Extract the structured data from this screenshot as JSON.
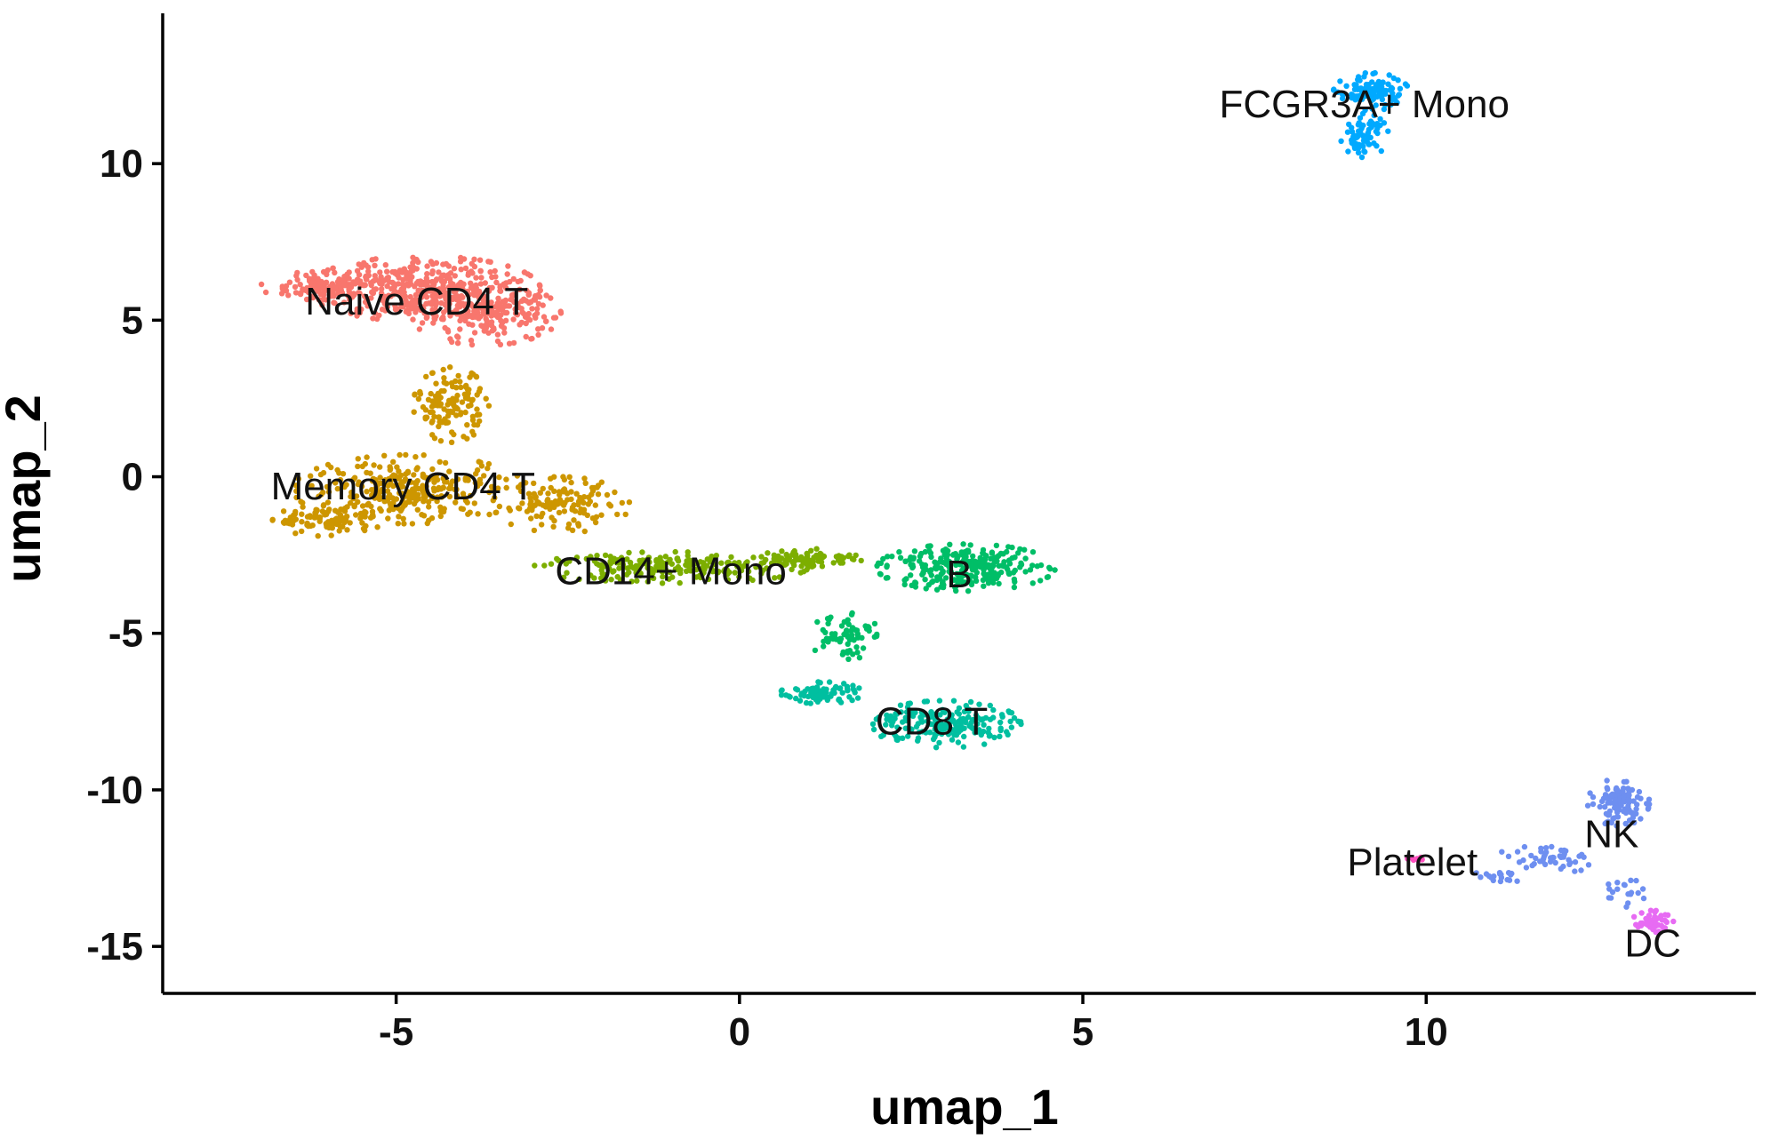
{
  "chart_data": {
    "type": "scatter",
    "title": "",
    "xlabel": "umap_1",
    "ylabel": "umap_2",
    "xlim": [
      -8.4,
      14.8
    ],
    "ylim": [
      -16.5,
      14.8
    ],
    "xticks": [
      -5,
      0,
      5,
      10
    ],
    "yticks": [
      10,
      5,
      0,
      -5,
      -10,
      -15
    ],
    "xtick_labels": [
      "-5",
      "0",
      "5",
      "10"
    ],
    "ytick_labels": [
      "10",
      "5",
      "0",
      "-5",
      "-10",
      "-15"
    ],
    "grid": false,
    "legend": "none",
    "series": [
      {
        "name": "Naive CD4 T",
        "color": "#F8766D",
        "label_at": [
          -4.7,
          5.6
        ],
        "n_points": 700,
        "regions": [
          {
            "cx": -4.6,
            "cy": 6.0,
            "rx": 1.7,
            "ry": 1.05,
            "w": 0.55
          },
          {
            "cx": -6.1,
            "cy": 6.1,
            "rx": 0.9,
            "ry": 0.45,
            "w": 0.15
          },
          {
            "cx": -3.7,
            "cy": 5.2,
            "rx": 1.1,
            "ry": 1.0,
            "w": 0.3
          }
        ]
      },
      {
        "name": "Memory CD4 T",
        "color": "#CD9600",
        "label_at": [
          -4.9,
          -0.3
        ],
        "n_points": 650,
        "regions": [
          {
            "cx": -4.8,
            "cy": -0.4,
            "rx": 1.7,
            "ry": 1.1,
            "w": 0.45
          },
          {
            "cx": -6.0,
            "cy": -1.4,
            "rx": 0.8,
            "ry": 0.5,
            "w": 0.15
          },
          {
            "cx": -4.2,
            "cy": 2.3,
            "rx": 0.55,
            "ry": 1.2,
            "w": 0.2
          },
          {
            "cx": -2.6,
            "cy": -0.9,
            "rx": 1.0,
            "ry": 0.9,
            "w": 0.2
          }
        ]
      },
      {
        "name": "CD14+ Mono",
        "color": "#7CAE00",
        "label_at": [
          -1.0,
          -3.0
        ],
        "n_points": 300,
        "regions": [
          {
            "cx": -1.0,
            "cy": -2.9,
            "rx": 2.0,
            "ry": 0.5,
            "w": 0.7
          },
          {
            "cx": 1.0,
            "cy": -2.6,
            "rx": 0.8,
            "ry": 0.3,
            "w": 0.3
          }
        ]
      },
      {
        "name": "B",
        "color": "#00BE67",
        "label_at": [
          3.2,
          -3.1
        ],
        "n_points": 340,
        "regions": [
          {
            "cx": 3.3,
            "cy": -2.9,
            "rx": 1.3,
            "ry": 0.75,
            "w": 0.8
          },
          {
            "cx": 1.5,
            "cy": -5.0,
            "rx": 0.5,
            "ry": 0.9,
            "w": 0.2
          }
        ]
      },
      {
        "name": "CD8 T",
        "color": "#00BFA0",
        "label_at": [
          2.8,
          -7.8
        ],
        "n_points": 280,
        "regions": [
          {
            "cx": 3.0,
            "cy": -7.9,
            "rx": 1.1,
            "ry": 0.75,
            "w": 0.7
          },
          {
            "cx": 1.2,
            "cy": -6.9,
            "rx": 0.6,
            "ry": 0.35,
            "w": 0.3
          }
        ]
      },
      {
        "name": "FCGR3A+ Mono",
        "color": "#00A9FF",
        "label_at": [
          9.1,
          11.9
        ],
        "n_points": 170,
        "regions": [
          {
            "cx": 9.2,
            "cy": 12.3,
            "rx": 0.55,
            "ry": 0.6,
            "w": 0.6
          },
          {
            "cx": 9.1,
            "cy": 10.9,
            "rx": 0.35,
            "ry": 0.7,
            "w": 0.4
          }
        ]
      },
      {
        "name": "NK",
        "color": "#6E8FF0",
        "label_at": [
          12.7,
          -11.4
        ],
        "n_points": 190,
        "regions": [
          {
            "cx": 12.8,
            "cy": -10.4,
            "rx": 0.45,
            "ry": 0.75,
            "w": 0.55
          },
          {
            "cx": 11.8,
            "cy": -12.2,
            "rx": 0.8,
            "ry": 0.45,
            "w": 0.25
          },
          {
            "cx": 11.0,
            "cy": -12.8,
            "rx": 0.4,
            "ry": 0.2,
            "w": 0.1
          },
          {
            "cx": 12.9,
            "cy": -13.3,
            "rx": 0.3,
            "ry": 0.5,
            "w": 0.1
          }
        ]
      },
      {
        "name": "Platelet",
        "color": "#FF4FBF",
        "label_at": [
          9.8,
          -12.3
        ],
        "n_points": 8,
        "regions": [
          {
            "cx": 9.85,
            "cy": -12.2,
            "rx": 0.15,
            "ry": 0.1,
            "w": 1.0
          }
        ]
      },
      {
        "name": "DC",
        "color": "#E76BF3",
        "label_at": [
          13.3,
          -14.9
        ],
        "n_points": 45,
        "regions": [
          {
            "cx": 13.3,
            "cy": -14.2,
            "rx": 0.3,
            "ry": 0.35,
            "w": 1.0
          }
        ]
      }
    ]
  }
}
